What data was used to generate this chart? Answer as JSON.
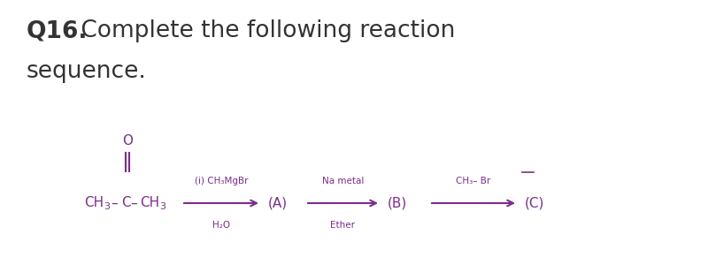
{
  "bg_color": "#ffffff",
  "title_bold": "Q16.",
  "title_normal": " Complete the following reaction",
  "title2": "sequence.",
  "title_fontsize": 19,
  "title_color": "#333333",
  "chem_color": "#7b2d8b",
  "arrow_color": "#7b2d8b",
  "reagent1_above": "(i) CH₃MgBr",
  "reagent1_below": "H₂O",
  "label_A": "(A)",
  "reagent2_above": "Na metal",
  "reagent2_below": "Ether",
  "label_B": "(B)",
  "reagent3_above": "CH₃– Br",
  "label_C": "(C)"
}
